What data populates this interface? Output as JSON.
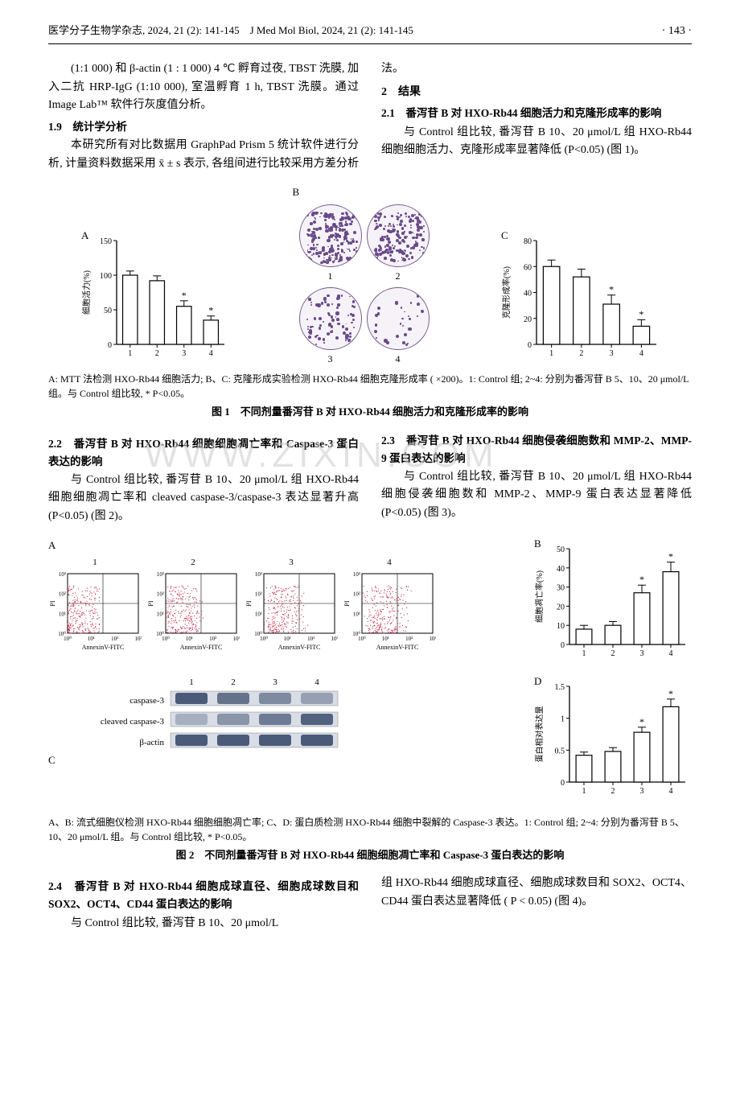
{
  "header": {
    "journal_cn": "医学分子生物学杂志, 2024, 21 (2): 141-145",
    "journal_en": "J Med Mol Biol, 2024, 21 (2): 141-145",
    "page": "· 143 ·"
  },
  "watermark": "WWW.ZIXIN.COM",
  "col_top": {
    "para1": "(1:1 000) 和 β-actin (1 : 1 000) 4 ℃ 孵育过夜, TBST 洗膜, 加入二抗 HRP-IgG (1:10 000), 室温孵育 1 h, TBST 洗膜。通过 Image Lab™ 软件行灰度值分析。",
    "sec19": "1.9　统计学分析",
    "para19": "本研究所有对比数据用 GraphPad Prism 5 统计软件进行分析, 计量资料数据采用 x̄ ± s 表示, 各组间进行比较采用方差分析法。",
    "sec2": "2　结果",
    "sec21": "2.1　番泻苷 B 对 HXO-Rb44 细胞活力和克隆形成率的影响",
    "para21": "与 Control 组比较, 番泻苷 B 10、20 μmol/L 组 HXO-Rb44 细胞细胞活力、克隆形成率显著降低 (P<0.05) (图 1)。"
  },
  "fig1": {
    "panelA": {
      "label": "A",
      "ylabel": "细胞活力(%)",
      "ymax": 150,
      "yticks": [
        0,
        50,
        100,
        150
      ],
      "categories": [
        "1",
        "2",
        "3",
        "4"
      ],
      "values": [
        100,
        92,
        55,
        35
      ],
      "errors": [
        6,
        7,
        8,
        6
      ],
      "stars": [
        "",
        "",
        "*",
        "*"
      ],
      "bar_fill": "#ffffff",
      "bar_stroke": "#000",
      "err_color": "#000"
    },
    "panelB": {
      "label": "B"
    },
    "panelC": {
      "label": "C",
      "ylabel": "克隆形成率(%)",
      "ymax": 80,
      "yticks": [
        0,
        20,
        40,
        60,
        80
      ],
      "categories": [
        "1",
        "2",
        "3",
        "4"
      ],
      "values": [
        60,
        52,
        31,
        14
      ],
      "errors": [
        5,
        6,
        7,
        5
      ],
      "stars": [
        "",
        "",
        "*",
        "*"
      ],
      "bar_fill": "#ffffff",
      "bar_stroke": "#000"
    },
    "caption": "A: MTT 法检测 HXO-Rb44 细胞活力; B、C: 克隆形成实验检测 HXO-Rb44 细胞克隆形成率 ( ×200)。1: Control 组; 2~4: 分别为番泻苷 B 5、10、20 μmol/L 组。与 Control 组比较, * P<0.05。",
    "title": "图 1　不同剂量番泻苷 B 对 HXO-Rb44 细胞活力和克隆形成率的影响"
  },
  "mid": {
    "sec22": "2.2　番泻苷 B 对 HXO-Rb44 细胞细胞凋亡率和 Caspase-3 蛋白表达的影响",
    "para22": "与 Control 组比较, 番泻苷 B 10、20 μmol/L 组 HXO-Rb44 细胞细胞凋亡率和 cleaved caspase-3/caspase-3 表达显著升高 (P<0.05) (图 2)。",
    "sec23": "2.3　番泻苷 B 对 HXO-Rb44 细胞侵袭细胞数和 MMP-2、MMP-9 蛋白表达的影响",
    "para23": "与 Control 组比较, 番泻苷 B 10、20 μmol/L 组 HXO-Rb44 细胞侵袭细胞数和 MMP-2、MMP-9 蛋白表达显著降低 (P<0.05) (图 3)。"
  },
  "fig2": {
    "panelA": {
      "label": "A",
      "subpanels": [
        "1",
        "2",
        "3",
        "4"
      ],
      "xaxis": "AnnexinV-FITC",
      "yaxis": "PI",
      "xticks": [
        "10⁰",
        "10¹",
        "10²",
        "10³"
      ],
      "yticks": [
        "10⁰",
        "10¹",
        "10²",
        "10³"
      ]
    },
    "panelB": {
      "label": "B",
      "ylabel": "细胞凋亡率(%)",
      "ymax": 50,
      "yticks": [
        0,
        10,
        20,
        30,
        40,
        50
      ],
      "categories": [
        "1",
        "2",
        "3",
        "4"
      ],
      "values": [
        8,
        10,
        27,
        38
      ],
      "errors": [
        2,
        2,
        4,
        5
      ],
      "stars": [
        "",
        "",
        "*",
        "*"
      ]
    },
    "panelC": {
      "label": "C",
      "rows": [
        "caspase-3",
        "cleaved caspase-3",
        "β-actin"
      ],
      "lanes": [
        "1",
        "2",
        "3",
        "4"
      ],
      "band_color": "#4a5a78"
    },
    "panelD": {
      "label": "D",
      "ylabel": "蛋白相对表达量",
      "ymax": 1.5,
      "yticks": [
        0,
        0.5,
        1.0,
        1.5
      ],
      "categories": [
        "1",
        "2",
        "3",
        "4"
      ],
      "values": [
        0.42,
        0.48,
        0.78,
        1.18
      ],
      "errors": [
        0.05,
        0.06,
        0.08,
        0.12
      ],
      "stars": [
        "",
        "",
        "*",
        "*"
      ]
    },
    "caption": "A、B: 流式细胞仪检测 HXO-Rb44 细胞细胞凋亡率; C、D: 蛋白质检测 HXO-Rb44 细胞中裂解的 Caspase-3 表达。1: Control 组; 2~4: 分别为番泻苷 B 5、10、20 μmol/L 组。与 Control 组比较, * P<0.05。",
    "title": "图 2　不同剂量番泻苷 B 对 HXO-Rb44 细胞细胞凋亡率和 Caspase-3 蛋白表达的影响"
  },
  "bottom": {
    "sec24": "2.4　番泻苷 B 对 HXO-Rb44 细胞成球直径、细胞成球数目和 SOX2、OCT4、CD44 蛋白表达的影响",
    "para24a": "与 Control 组比较, 番泻苷 B 10、20 μmol/L",
    "para24b": "组 HXO-Rb44 细胞成球直径、细胞成球数目和 SOX2、OCT4、CD44 蛋白表达显著降低 ( P < 0.05) (图 4)。"
  }
}
